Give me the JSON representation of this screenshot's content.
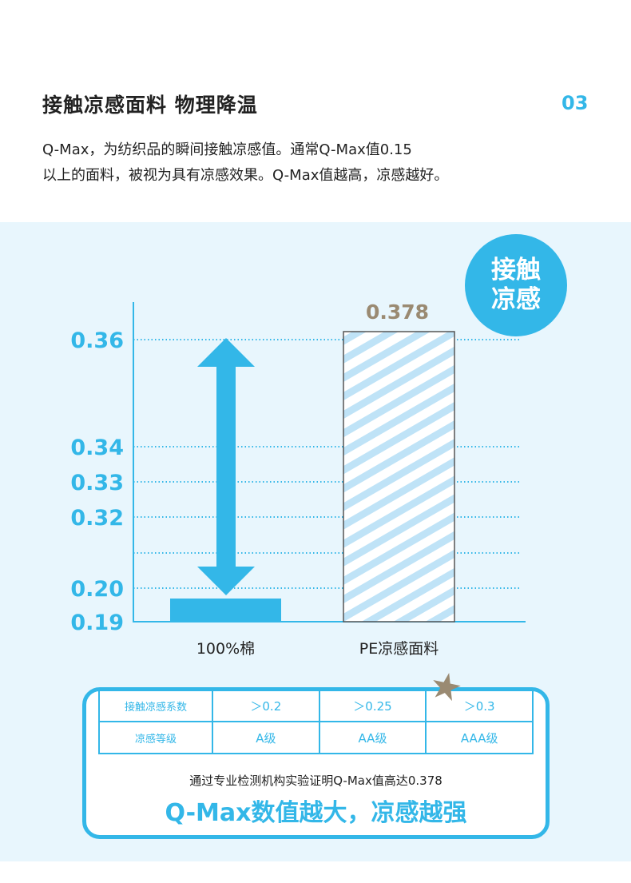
{
  "header": {
    "title": "接触凉感面料 物理降温",
    "page_number": "03",
    "description_line1": "Q-Max，为纺织品的瞬间接触凉感值。通常Q-Max值0.15",
    "description_line2": "以上的面料，被视为具有凉感效果。Q-Max值越高，凉感越好。"
  },
  "badge": {
    "line1": "接触",
    "line2": "凉感"
  },
  "chart_data": {
    "type": "bar",
    "categories": [
      "100%棉",
      "PE凉感面料"
    ],
    "values": [
      0.19,
      0.378
    ],
    "data_labels": [
      "",
      "0.378"
    ],
    "y_ticks": [
      "0.19",
      "0.20",
      "0.32",
      "0.33",
      "0.34",
      "0.36"
    ],
    "y_axis": "broken scale",
    "grid": "dotted horizontal lines",
    "annotation": "double-headed arrow between the two bars",
    "colors": {
      "accent": "#33b7e8",
      "value_label": "#9a8a72",
      "hatched_bar_stripe": "#bfe3f7"
    }
  },
  "grade_table": {
    "row1": [
      "接触凉感系数",
      "＞0.2",
      "＞0.25",
      "＞0.3"
    ],
    "row2": [
      "凉感等级",
      "A级",
      "AA级",
      "AAA级"
    ]
  },
  "footer": {
    "proof_text": "通过专业检测机构实验证明Q-Max值高达0.378",
    "slogan": "Q-Max数值越大，凉感越强"
  },
  "colors": {
    "accent": "#33b7e8",
    "panel_background": "#e8f6fd",
    "star": "#9a8a72"
  }
}
